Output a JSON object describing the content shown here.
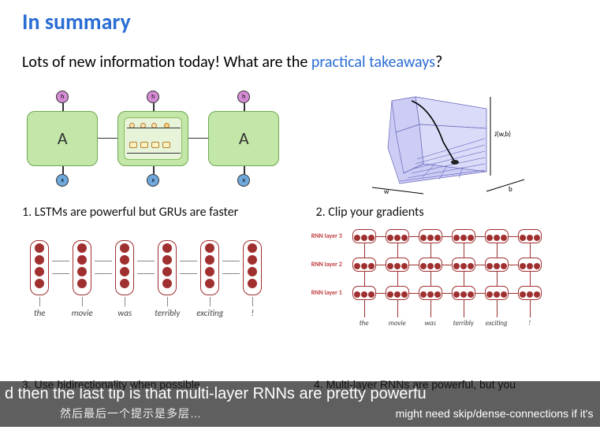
{
  "title_prefix": "In summary",
  "accent_color": "#2a6dd4",
  "subtitle_plain_before": "Lots of new information today! What are the ",
  "subtitle_accent": "practical takeaways",
  "subtitle_plain_after": "?",
  "panels": {
    "p1": {
      "caption": "1. LSTMs are powerful but GRUs are faster",
      "block_label": "A",
      "colors": {
        "block_fill": "#c3e6a9",
        "block_border": "#6ea84f",
        "h_node": "#d48bd4",
        "x_node": "#6fa8dc",
        "line": "#333333"
      }
    },
    "p2": {
      "caption": "2. Clip your gradients",
      "axis_label_y": "J(w,b)",
      "axis_label_x1": "w",
      "axis_label_x2": "b",
      "colors": {
        "surface_fill": "#c4c4f4",
        "surface_line": "#5050b0",
        "ball": "#222222"
      }
    },
    "p3": {
      "caption": "3. Use bidirectionality when possible",
      "tokens": [
        "the",
        "movie",
        "was",
        "terribly",
        "exciting",
        "!"
      ],
      "colors": {
        "unit_border": "#a03030",
        "node_fill": "#a03030",
        "arrow": "#888888"
      }
    },
    "p4": {
      "caption": "4. Multi-layer RNNs are powerful, but you",
      "caption_line2": "might need skip/dense-connections if it's deep",
      "row_labels": [
        "RNN layer 3",
        "RNN layer 2",
        "RNN layer 1"
      ],
      "tokens": [
        "the",
        "movie",
        "was",
        "terribly",
        "exciting",
        "!"
      ],
      "colors": {
        "unit_border": "#a03030",
        "node_fill": "#a03030",
        "edge": "#a03030"
      }
    }
  },
  "overlay": {
    "line1": "d then the last tip is that multi-layer RNNs are pretty powerfu",
    "line2_prefix": "might need skip/dense-connections if it's deep",
    "watermark_cn": "然后最后一个提示是多层…",
    "under1": "3. Use bidirectionality when possible",
    "under2": "4. Multi-layer RNNs are powerful, but you"
  }
}
